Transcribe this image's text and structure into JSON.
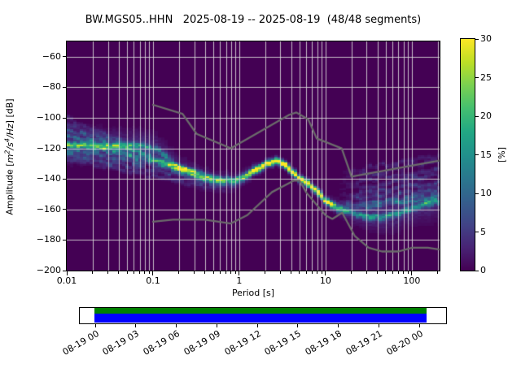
{
  "chart_data": {
    "type": "heatmap",
    "title": "BW.MGS05..HHN   2025-08-19 -- 2025-08-19  (48/48 segments)",
    "station": "BW.MGS05..HHN",
    "date_range": "2025-08-19 -- 2025-08-19",
    "segments": "48/48 segments",
    "xlabel": "Period [s]",
    "ylabel": "Amplitude [m2/s4/Hz] [dB]",
    "ylabel_parts": {
      "pre": "Amplitude [",
      "m": "m",
      "m_sup": "2",
      "s": "/s",
      "s_sup": "4",
      "hz": "/Hz",
      "post": "] [dB]"
    },
    "x_scale": "log",
    "xlim": [
      0.01,
      210
    ],
    "ylim": [
      -200,
      -50
    ],
    "x_ticks": [
      0.01,
      0.1,
      1,
      10,
      100
    ],
    "x_tick_labels": [
      "0.01",
      "0.1",
      "1",
      "10",
      "100"
    ],
    "y_ticks": [
      -60,
      -80,
      -100,
      -120,
      -140,
      -160,
      -180,
      -200
    ],
    "y_tick_labels": [
      "−60",
      "−80",
      "−100",
      "−120",
      "−140",
      "−160",
      "−180",
      "−200"
    ],
    "grid": "both-log-minor",
    "grid_color": "rgba(222,222,222,0.85)",
    "background_color": "#440154",
    "colorbar": {
      "label": "[%]",
      "lim": [
        0,
        30
      ],
      "ticks": [
        0,
        5,
        10,
        15,
        20,
        25,
        30
      ],
      "tick_labels": [
        "0",
        "5",
        "10",
        "15",
        "20",
        "25",
        "30"
      ],
      "colormap": "viridis",
      "stops": [
        "#440154",
        "#482475",
        "#414487",
        "#355f8d",
        "#2a788e",
        "#21918c",
        "#22a884",
        "#44bf70",
        "#7ad151",
        "#bddf26",
        "#fde725"
      ]
    },
    "noise_models": {
      "color": "#6b6b6b",
      "peterson_high_nhnm": [
        [
          0.1,
          -91.5
        ],
        [
          0.22,
          -97.4
        ],
        [
          0.32,
          -110.5
        ],
        [
          0.8,
          -120.0
        ],
        [
          3.8,
          -98.0
        ],
        [
          4.6,
          -96.5
        ],
        [
          6.3,
          -101.0
        ],
        [
          7.9,
          -113.5
        ],
        [
          15.4,
          -120.0
        ],
        [
          20.0,
          -138.5
        ],
        [
          210.0,
          -128.0
        ]
      ],
      "peterson_low_nlnm": [
        [
          0.1,
          -168.0
        ],
        [
          0.17,
          -166.7
        ],
        [
          0.4,
          -166.7
        ],
        [
          0.8,
          -169.2
        ],
        [
          1.24,
          -163.7
        ],
        [
          2.4,
          -148.6
        ],
        [
          4.3,
          -141.1
        ],
        [
          5.0,
          -141.1
        ],
        [
          6.0,
          -149.0
        ],
        [
          10.0,
          -163.8
        ],
        [
          12.0,
          -166.2
        ],
        [
          15.6,
          -162.1
        ],
        [
          21.9,
          -177.5
        ],
        [
          31.6,
          -185.0
        ],
        [
          45.0,
          -187.5
        ],
        [
          70.0,
          -187.5
        ],
        [
          101.0,
          -185.0
        ],
        [
          154.0,
          -185.0
        ],
        [
          210.0,
          -186.2
        ]
      ]
    },
    "ppsd": {
      "mode_curve": [
        [
          0.01,
          -118
        ],
        [
          0.04,
          -118.5
        ],
        [
          0.08,
          -118
        ],
        [
          0.11,
          -121
        ],
        [
          0.14,
          -125
        ],
        [
          0.18,
          -130.5
        ],
        [
          0.25,
          -136
        ],
        [
          0.35,
          -139
        ],
        [
          0.5,
          -140.5
        ],
        [
          0.8,
          -141.2
        ],
        [
          1.0,
          -140.5
        ],
        [
          1.4,
          -136
        ],
        [
          1.8,
          -132.5
        ],
        [
          2.2,
          -129.8
        ],
        [
          2.8,
          -127.5
        ],
        [
          3.5,
          -131
        ],
        [
          4.2,
          -136
        ],
        [
          5,
          -140
        ],
        [
          6,
          -142.5
        ],
        [
          7,
          -145
        ],
        [
          8,
          -149
        ],
        [
          10,
          -154
        ],
        [
          12,
          -157.5
        ],
        [
          15,
          -160
        ],
        [
          20,
          -162
        ],
        [
          30,
          -164.5
        ],
        [
          45,
          -165.5
        ],
        [
          70,
          -162.5
        ],
        [
          100,
          -159.5
        ],
        [
          140,
          -157
        ],
        [
          200,
          -155
        ]
      ],
      "peak_percent": [
        [
          0.01,
          14
        ],
        [
          0.05,
          14
        ],
        [
          0.1,
          12
        ],
        [
          0.2,
          10
        ],
        [
          0.3,
          12
        ],
        [
          0.5,
          13
        ],
        [
          0.8,
          15
        ],
        [
          1.0,
          18
        ],
        [
          1.3,
          25
        ],
        [
          1.8,
          28
        ],
        [
          2.5,
          30
        ],
        [
          3.5,
          30
        ],
        [
          5,
          29
        ],
        [
          7,
          28
        ],
        [
          9,
          27
        ],
        [
          11,
          25
        ],
        [
          13,
          19
        ],
        [
          16,
          14
        ],
        [
          20,
          12.5
        ],
        [
          30,
          13
        ],
        [
          50,
          13
        ],
        [
          100,
          12
        ],
        [
          200,
          10
        ]
      ],
      "halo_spread_db": [
        [
          0.01,
          7
        ],
        [
          0.1,
          6
        ],
        [
          0.3,
          4.5
        ],
        [
          1,
          3
        ],
        [
          2,
          1.8
        ],
        [
          6,
          1.8
        ],
        [
          10,
          2
        ],
        [
          20,
          4
        ],
        [
          40,
          6
        ],
        [
          100,
          7
        ],
        [
          200,
          8
        ]
      ],
      "left_fan": [
        [
          -100,
          -150,
          3
        ],
        [
          -104,
          -147,
          4
        ],
        [
          -108,
          -145,
          5
        ],
        [
          -112,
          -143,
          6
        ],
        [
          -115.5,
          -141.5,
          7
        ],
        [
          -121,
          -140.5,
          6
        ],
        [
          -124,
          -144,
          4.5
        ],
        [
          -127,
          -149,
          3
        ]
      ],
      "left_fan_period_range": [
        0.01,
        0.9
      ],
      "right_fan": [
        [
          -136,
          -125,
          2.5
        ],
        [
          -140,
          -129,
          3
        ],
        [
          -144,
          -133,
          3.5
        ],
        [
          -148,
          -137.5,
          4
        ],
        [
          -151.5,
          -142,
          4.5
        ],
        [
          -154.5,
          -146.5,
          5
        ],
        [
          -157,
          -150.5,
          6
        ],
        [
          -159.5,
          -153.5,
          7.5
        ]
      ],
      "right_fan_period_range": [
        13,
        210
      ]
    }
  },
  "timeline": {
    "tick_labels": [
      "08-19 00",
      "08-19 03",
      "08-19 06",
      "08-19 09",
      "08-19 12",
      "08-19 15",
      "08-19 18",
      "08-19 21",
      "08-20 00"
    ],
    "green_color": "#008000",
    "blue_color": "#0000ff",
    "coverage_start_frac": 0.0,
    "coverage_end_frac": 1.02
  }
}
